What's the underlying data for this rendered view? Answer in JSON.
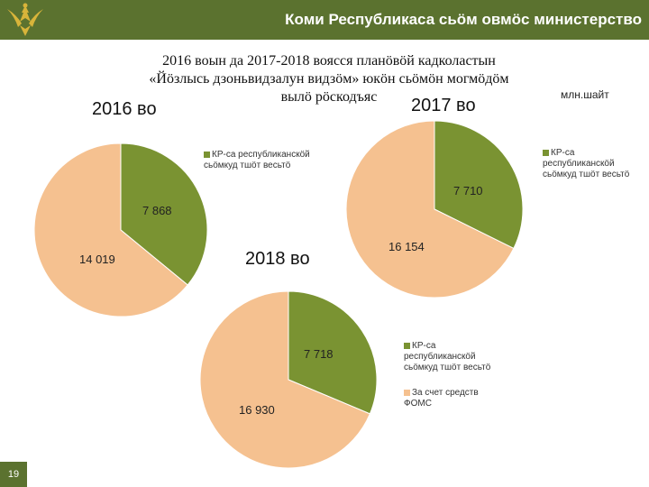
{
  "header": {
    "title": "Коми Республикаса сьӧм овмӧс министерство"
  },
  "subtitle": {
    "line1": "2016 воын да 2017-2018 воясся планӧвӧй кадколастын",
    "line2": "«Йӧзлысь дзоньвидзалун видзӧм» юкӧн сьӧмӧн могмӧдӧм",
    "line3": "вылӧ рӧскодъяс"
  },
  "unit_label": "млн.шайт",
  "page_number": "19",
  "colors": {
    "green": "#7a9332",
    "peach": "#f5c190",
    "header_green": "#5b722f"
  },
  "chart_data": [
    {
      "type": "pie",
      "title": "2016 во",
      "slices": [
        {
          "label": "КР-са республиканскӧй сьӧмкуд тшӧт весьтӧ",
          "value": 7868,
          "display": "7 868",
          "color": "#7a9332"
        },
        {
          "label": "За счет средств ФОМС",
          "value": 14019,
          "display": "14 019",
          "color": "#f5c190"
        }
      ]
    },
    {
      "type": "pie",
      "title": "2017 во",
      "slices": [
        {
          "label": "КР-са республиканскӧй сьӧмкуд тшӧт весьтӧ",
          "value": 7710,
          "display": "7 710",
          "color": "#7a9332"
        },
        {
          "label": "За счет средств ФОМС",
          "value": 16154,
          "display": "16 154",
          "color": "#f5c190"
        }
      ]
    },
    {
      "type": "pie",
      "title": "2018 во",
      "slices": [
        {
          "label": "КР-са республиканскӧй сьӧмкуд тшӧт весьтӧ",
          "value": 7718,
          "display": "7 718",
          "color": "#7a9332"
        },
        {
          "label": "За счет средств ФОМС",
          "value": 16930,
          "display": "16 930",
          "color": "#f5c190"
        }
      ]
    }
  ],
  "legends": {
    "left": "КР-са республиканскӧй сьӧмкуд тшӧт весьтӧ",
    "right": "КР-са республиканскӧй сьӧмкуд тшӧт весьтӧ",
    "bottom_1": "КР-са республиканскӧй сьӧмкуд тшӧт весьтӧ",
    "bottom_2": "За счет средств ФОМС"
  }
}
